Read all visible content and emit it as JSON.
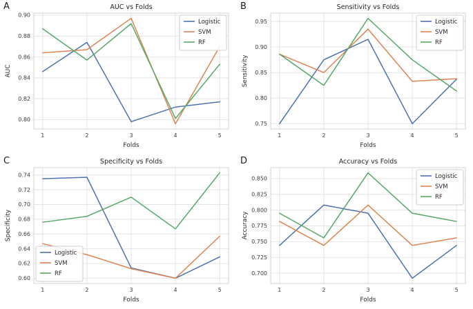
{
  "figure": {
    "background": "#ffffff",
    "series_names": [
      "Logistic",
      "SVM",
      "RF"
    ]
  },
  "style": {
    "plot_background": "#ffffff",
    "grid_color": "#e4e4e4",
    "spine_color": "#d3d3d3",
    "tick_text_color": "#3b3b3b",
    "label_text_color": "#2b2b2b",
    "title_text_color": "#262626",
    "legend_border_color": "#cccccc",
    "legend_background": "#ffffff",
    "series_colors": {
      "Logistic": "#4C72B0",
      "SVM": "#DD8452",
      "RF": "#55A868"
    }
  },
  "chart_data": [
    {
      "id": "A",
      "type": "line",
      "letter": "A",
      "title": "AUC vs Folds",
      "xlabel": "Folds",
      "ylabel": "AUC",
      "x": [
        1,
        2,
        3,
        4,
        5
      ],
      "xtick_labels": [
        "1",
        "2",
        "3",
        "4",
        "5"
      ],
      "xlim": [
        0.8,
        5.2
      ],
      "ylim": [
        0.791,
        0.902
      ],
      "ytick_values": [
        0.8,
        0.82,
        0.84,
        0.86,
        0.88,
        0.9
      ],
      "ytick_labels": [
        "0.80",
        "0.82",
        "0.84",
        "0.86",
        "0.88",
        "0.90"
      ],
      "grid": true,
      "legend_position": "top-right",
      "series": [
        {
          "name": "Logistic",
          "values": [
            0.846,
            0.874,
            0.798,
            0.812,
            0.817
          ]
        },
        {
          "name": "SVM",
          "values": [
            0.864,
            0.867,
            0.897,
            0.796,
            0.87
          ]
        },
        {
          "name": "RF",
          "values": [
            0.887,
            0.857,
            0.892,
            0.801,
            0.853
          ]
        }
      ]
    },
    {
      "id": "B",
      "type": "line",
      "letter": "B",
      "title": "Sensitivity vs Folds",
      "xlabel": "Folds",
      "ylabel": "Sensitivity",
      "x": [
        1,
        2,
        3,
        4,
        5
      ],
      "xtick_labels": [
        "1",
        "2",
        "3",
        "4",
        "5"
      ],
      "xlim": [
        0.8,
        5.2
      ],
      "ylim": [
        0.7397,
        0.9663
      ],
      "ytick_values": [
        0.75,
        0.8,
        0.85,
        0.9,
        0.95
      ],
      "ytick_labels": [
        "0.75",
        "0.80",
        "0.85",
        "0.90",
        "0.95"
      ],
      "grid": true,
      "legend_position": "top-right",
      "series": [
        {
          "name": "Logistic",
          "values": [
            0.75,
            0.875,
            0.915,
            0.75,
            0.837
          ]
        },
        {
          "name": "SVM",
          "values": [
            0.886,
            0.85,
            0.935,
            0.833,
            0.838
          ]
        },
        {
          "name": "RF",
          "values": [
            0.886,
            0.825,
            0.956,
            0.875,
            0.814
          ]
        }
      ]
    },
    {
      "id": "C",
      "type": "line",
      "letter": "C",
      "title": "Specificity vs Folds",
      "xlabel": "Folds",
      "ylabel": "Specificity",
      "x": [
        1,
        2,
        3,
        4,
        5
      ],
      "xtick_labels": [
        "1",
        "2",
        "3",
        "4",
        "5"
      ],
      "xlim": [
        0.8,
        5.2
      ],
      "ylim": [
        0.5929,
        0.7501
      ],
      "ytick_values": [
        0.6,
        0.62,
        0.64,
        0.66,
        0.68,
        0.7,
        0.72,
        0.74
      ],
      "ytick_labels": [
        "0.60",
        "0.62",
        "0.64",
        "0.66",
        "0.68",
        "0.70",
        "0.72",
        "0.74"
      ],
      "grid": true,
      "legend_position": "bottom-left",
      "series": [
        {
          "name": "Logistic",
          "values": [
            0.735,
            0.737,
            0.614,
            0.6,
            0.629
          ]
        },
        {
          "name": "SVM",
          "values": [
            0.647,
            0.632,
            0.613,
            0.6,
            0.657
          ]
        },
        {
          "name": "RF",
          "values": [
            0.676,
            0.684,
            0.71,
            0.667,
            0.743
          ]
        }
      ]
    },
    {
      "id": "D",
      "type": "line",
      "letter": "D",
      "title": "Accuracy vs Folds",
      "xlabel": "Folds",
      "ylabel": "Accuracy",
      "x": [
        1,
        2,
        3,
        4,
        5
      ],
      "xtick_labels": [
        "1",
        "2",
        "3",
        "4",
        "5"
      ],
      "xlim": [
        0.8,
        5.2
      ],
      "ylim": [
        0.6837,
        0.8673
      ],
      "ytick_values": [
        0.7,
        0.725,
        0.75,
        0.775,
        0.8,
        0.825,
        0.85
      ],
      "ytick_labels": [
        "0.700",
        "0.725",
        "0.750",
        "0.775",
        "0.800",
        "0.825",
        "0.850"
      ],
      "grid": true,
      "legend_position": "top-right",
      "series": [
        {
          "name": "Logistic",
          "values": [
            0.744,
            0.808,
            0.795,
            0.692,
            0.744
          ]
        },
        {
          "name": "SVM",
          "values": [
            0.782,
            0.744,
            0.808,
            0.744,
            0.756
          ]
        },
        {
          "name": "RF",
          "values": [
            0.795,
            0.756,
            0.859,
            0.795,
            0.782
          ]
        }
      ]
    }
  ]
}
